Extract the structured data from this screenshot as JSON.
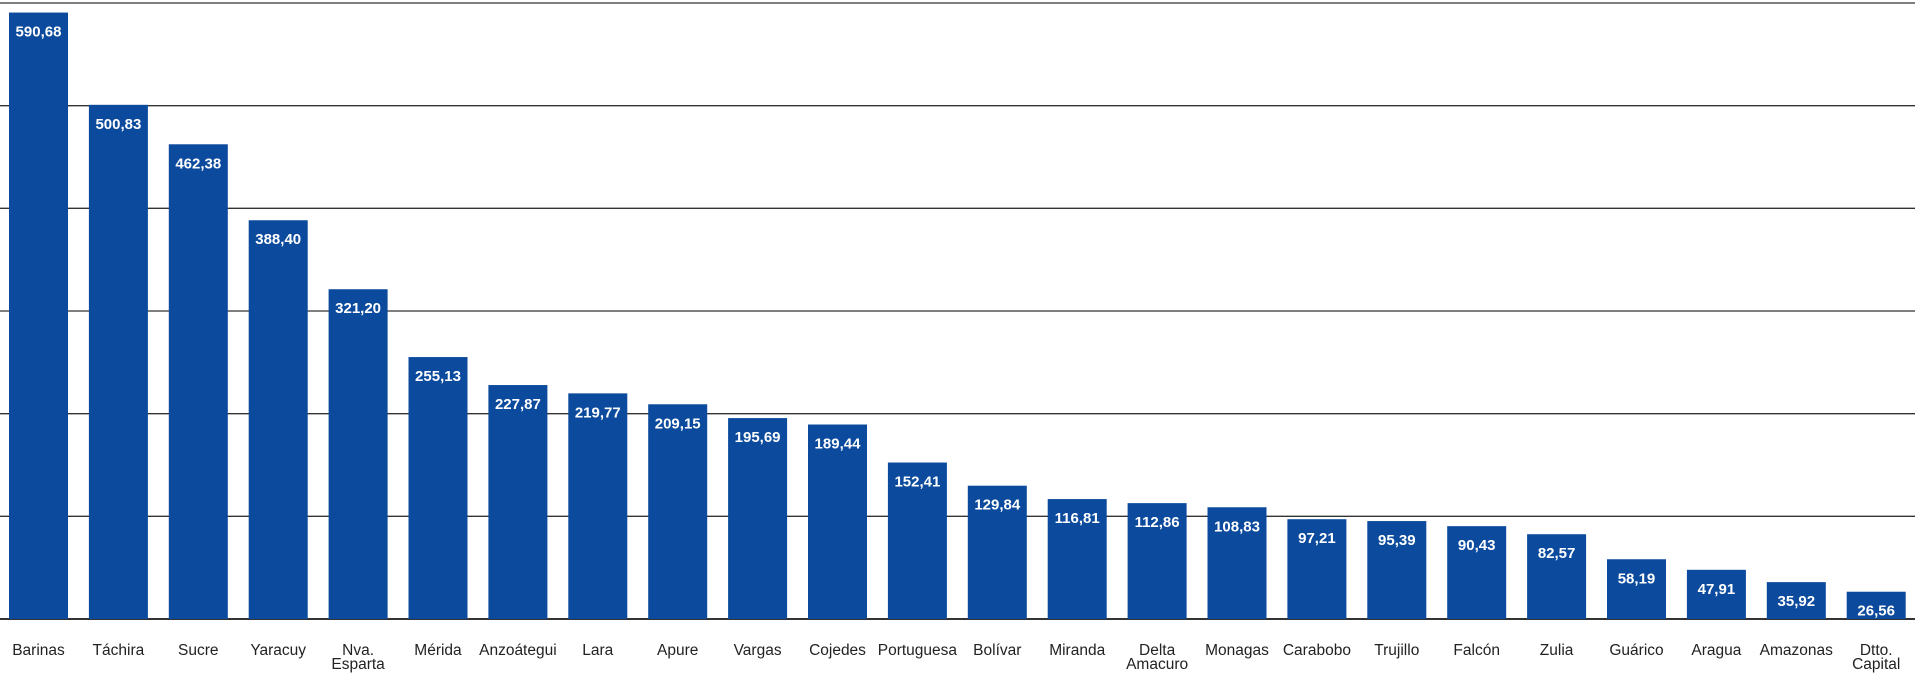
{
  "chart_data": {
    "type": "bar",
    "categories": [
      "Barinas",
      "Táchira",
      "Sucre",
      "Yaracuy",
      "Nva. Esparta",
      "Mérida",
      "Anzoátegui",
      "Lara",
      "Apure",
      "Vargas",
      "Cojedes",
      "Portuguesa",
      "Bolívar",
      "Miranda",
      "Delta Amacuro",
      "Monagas",
      "Carabobo",
      "Trujillo",
      "Falcón",
      "Zulia",
      "Guárico",
      "Aragua",
      "Amazonas",
      "Dtto. Capital"
    ],
    "values": [
      590.68,
      500.83,
      462.38,
      388.4,
      321.2,
      255.13,
      227.87,
      219.77,
      209.15,
      195.69,
      189.44,
      152.41,
      129.84,
      116.81,
      112.86,
      108.83,
      97.21,
      95.39,
      90.43,
      82.57,
      58.19,
      47.91,
      35.92,
      26.56
    ],
    "value_labels": [
      "590,68",
      "500,83",
      "462,38",
      "388,40",
      "321,20",
      "255,13",
      "227,87",
      "219,77",
      "209,15",
      "195,69",
      "189,44",
      "152,41",
      "129,84",
      "116,81",
      "112,86",
      "108,83",
      "97,21",
      "95,39",
      "90,43",
      "82,57",
      "58,19",
      "47,91",
      "35,92",
      "26,56"
    ],
    "ylim": [
      0,
      600
    ],
    "grid": true,
    "bar_color": "#0b4a9c",
    "grid_color": "#333333"
  }
}
